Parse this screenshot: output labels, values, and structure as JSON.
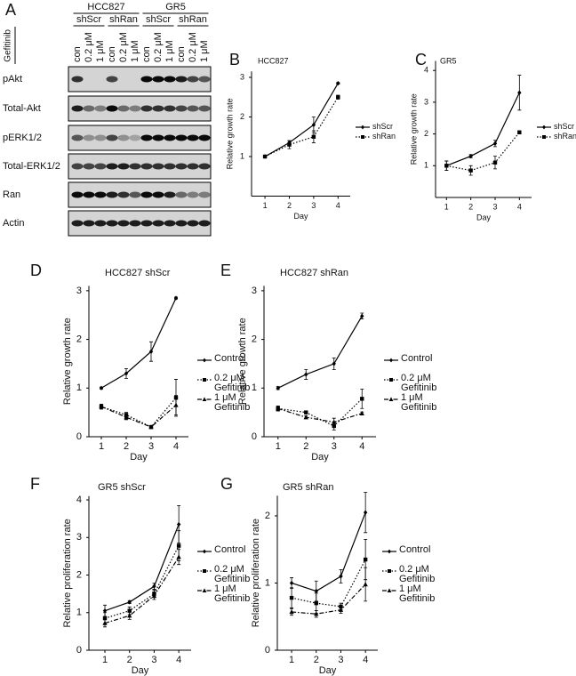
{
  "blot": {
    "panel": "A",
    "treatment_label": "Gefitinib",
    "groups": [
      {
        "label": "HCC827",
        "subgroups": [
          "shScr",
          "shRan"
        ]
      },
      {
        "label": "GR5",
        "subgroups": [
          "shScr",
          "shRan"
        ]
      }
    ],
    "lanes": [
      "con",
      "0.2 μM",
      "1 μM",
      "con",
      "0.2 μM",
      "1 μM",
      "con",
      "0.2 μM",
      "1 μM",
      "con",
      "0.2 μM",
      "1 μM"
    ],
    "rows": [
      {
        "name": "pAkt",
        "bands": [
          0.8,
          0,
          0,
          0.7,
          0,
          0,
          1,
          1,
          1,
          0.9,
          0.7,
          0.6
        ]
      },
      {
        "name": "Total-Akt",
        "bands": [
          0.9,
          0.5,
          0.4,
          1,
          0.5,
          0.4,
          0.8,
          0.8,
          0.8,
          0.7,
          0.6,
          0.6
        ]
      },
      {
        "name": "pERK1/2",
        "bands": [
          0.6,
          0.3,
          0.3,
          0.7,
          0.3,
          0.2,
          1,
          1,
          1,
          1,
          1,
          1
        ]
      },
      {
        "name": "Total-ERK1/2",
        "bands": [
          0.7,
          0.7,
          0.7,
          0.9,
          0.9,
          0.8,
          0.8,
          0.8,
          0.8,
          0.8,
          0.8,
          0.8
        ]
      },
      {
        "name": "Ran",
        "bands": [
          1,
          1,
          1,
          0.9,
          0.8,
          0.6,
          1,
          1,
          0.9,
          0.5,
          0.4,
          0.4
        ]
      },
      {
        "name": "Actin",
        "bands": [
          0.9,
          0.9,
          0.9,
          0.9,
          0.9,
          0.9,
          0.9,
          0.9,
          0.9,
          0.9,
          0.9,
          0.9
        ]
      }
    ]
  },
  "chart_data": [
    {
      "type": "line",
      "panel": "B",
      "title": "HCC827",
      "xlabel": "Day",
      "ylabel": "Relative growth rate",
      "x": [
        1,
        2,
        3,
        4
      ],
      "xlim": [
        0.45,
        4.5
      ],
      "xticks": [
        1,
        2,
        3,
        4
      ],
      "ylim": [
        0,
        3.15
      ],
      "yticks": [
        1,
        2,
        3
      ],
      "legend": "right",
      "series": [
        {
          "name": "shScr",
          "color": "#000000",
          "style": "solid",
          "marker": "diamond",
          "values": [
            1,
            1.35,
            1.8,
            2.85
          ],
          "errors": [
            0.02,
            0.05,
            0.2,
            0.02
          ]
        },
        {
          "name": "shRan",
          "color": "#000000",
          "style": "dotted",
          "marker": "square",
          "values": [
            1,
            1.3,
            1.5,
            2.5
          ],
          "errors": [
            0.02,
            0.1,
            0.15,
            0.05
          ]
        }
      ]
    },
    {
      "type": "line",
      "panel": "C",
      "title": "GR5",
      "xlabel": "Day",
      "ylabel": "Relative growth rate",
      "x": [
        1,
        2,
        3,
        4
      ],
      "xlim": [
        0.55,
        4.5
      ],
      "xticks": [
        1,
        2,
        3,
        4
      ],
      "ylim": [
        0,
        4.3
      ],
      "yticks": [
        1,
        2,
        3,
        4
      ],
      "legend": "right",
      "series": [
        {
          "name": "shScr",
          "color": "#000000",
          "style": "solid",
          "marker": "diamond",
          "values": [
            1,
            1.3,
            1.7,
            3.3
          ],
          "errors": [
            0.15,
            0.05,
            0.1,
            0.55
          ]
        },
        {
          "name": "shRan",
          "color": "#000000",
          "style": "dotted",
          "marker": "square",
          "values": [
            1,
            0.85,
            1.1,
            2.05
          ],
          "errors": [
            0.15,
            0.15,
            0.2,
            0.05
          ]
        }
      ]
    },
    {
      "type": "line",
      "panel": "D",
      "title": "HCC827 shScr",
      "xlabel": "Day",
      "ylabel": "Relative growth rate",
      "x": [
        1,
        2,
        3,
        4
      ],
      "xlim": [
        0.5,
        4.5
      ],
      "xticks": [
        1,
        2,
        3,
        4
      ],
      "ylim": [
        0,
        3.1
      ],
      "yticks": [
        0,
        1,
        2,
        3
      ],
      "legend": "right",
      "series": [
        {
          "name": "Control",
          "color": "#000000",
          "style": "solid",
          "marker": "diamond",
          "values": [
            1,
            1.3,
            1.75,
            2.85
          ],
          "errors": [
            0.02,
            0.1,
            0.2,
            0.02
          ]
        },
        {
          "name": "0.2 μM Gefitinib",
          "color": "#000000",
          "style": "dotted",
          "marker": "square",
          "values": [
            0.62,
            0.45,
            0.2,
            0.8
          ],
          "errors": [
            0.05,
            0.05,
            0.03,
            0.38
          ]
        },
        {
          "name": "1 μM Gefitinib",
          "color": "#000000",
          "style": "dashdot",
          "marker": "triangle",
          "values": [
            0.62,
            0.4,
            0.2,
            0.65
          ],
          "errors": [
            0.05,
            0.05,
            0.03,
            0.2
          ]
        }
      ]
    },
    {
      "type": "line",
      "panel": "E",
      "title": "HCC827 shRan",
      "xlabel": "Day",
      "ylabel": "Relative growth rate",
      "x": [
        1,
        2,
        3,
        4
      ],
      "xlim": [
        0.5,
        4.5
      ],
      "xticks": [
        1,
        2,
        3,
        4
      ],
      "ylim": [
        0,
        3.1
      ],
      "yticks": [
        0,
        1,
        2,
        3
      ],
      "legend": "right",
      "series": [
        {
          "name": "Control",
          "color": "#000000",
          "style": "solid",
          "marker": "diamond",
          "values": [
            1,
            1.28,
            1.5,
            2.48
          ],
          "errors": [
            0.03,
            0.1,
            0.12,
            0.06
          ]
        },
        {
          "name": "0.2 μM Gefitinib",
          "color": "#000000",
          "style": "dotted",
          "marker": "square",
          "values": [
            0.58,
            0.5,
            0.22,
            0.78
          ],
          "errors": [
            0.05,
            0.03,
            0.08,
            0.2
          ]
        },
        {
          "name": "1 μM Gefitinib",
          "color": "#000000",
          "style": "dashdot",
          "marker": "triangle",
          "values": [
            0.58,
            0.4,
            0.3,
            0.48
          ],
          "errors": [
            0.05,
            0.03,
            0.08,
            0.03
          ]
        }
      ]
    },
    {
      "type": "line",
      "panel": "F",
      "title": "GR5 shScr",
      "xlabel": "Day",
      "ylabel": "Relative proliferation rate",
      "x": [
        1,
        2,
        3,
        4
      ],
      "xlim": [
        0.35,
        4.5
      ],
      "xticks": [
        1,
        2,
        3,
        4
      ],
      "ylim": [
        0,
        4.1
      ],
      "yticks": [
        0,
        1,
        2,
        3,
        4
      ],
      "legend": "right",
      "series": [
        {
          "name": "Control",
          "color": "#000000",
          "style": "solid",
          "marker": "diamond",
          "values": [
            1.05,
            1.28,
            1.7,
            3.35
          ],
          "errors": [
            0.15,
            0.04,
            0.08,
            0.5
          ]
        },
        {
          "name": "0.2 μM Gefitinib",
          "color": "#000000",
          "style": "dotted",
          "marker": "square",
          "values": [
            0.85,
            1.05,
            1.5,
            2.78
          ],
          "errors": [
            0.15,
            0.1,
            0.1,
            0.4
          ]
        },
        {
          "name": "1 μM Gefitinib",
          "color": "#000000",
          "style": "dashdot",
          "marker": "triangle",
          "values": [
            0.72,
            0.92,
            1.45,
            2.48
          ],
          "errors": [
            0.1,
            0.1,
            0.1,
            0.2
          ]
        }
      ]
    },
    {
      "type": "line",
      "panel": "G",
      "title": "GR5 shRan",
      "xlabel": "Day",
      "ylabel": "Relative proliferation rate",
      "x": [
        1,
        2,
        3,
        4
      ],
      "xlim": [
        0.42,
        4.5
      ],
      "xticks": [
        1,
        2,
        3,
        4
      ],
      "ylim": [
        0,
        2.3
      ],
      "yticks": [
        0,
        1,
        2
      ],
      "legend": "right",
      "series": [
        {
          "name": "Control",
          "color": "#000000",
          "style": "solid",
          "marker": "diamond",
          "values": [
            1,
            0.88,
            1.1,
            2.05
          ],
          "errors": [
            0.08,
            0.15,
            0.1,
            0.3
          ]
        },
        {
          "name": "0.2 μM Gefitinib",
          "color": "#000000",
          "style": "dotted",
          "marker": "square",
          "values": [
            0.78,
            0.7,
            0.65,
            1.35
          ],
          "errors": [
            0.15,
            0.15,
            0.05,
            0.3
          ]
        },
        {
          "name": "1 μM Gefitinib",
          "color": "#000000",
          "style": "dashdot",
          "marker": "triangle",
          "values": [
            0.57,
            0.54,
            0.6,
            0.98
          ],
          "errors": [
            0.05,
            0.05,
            0.05,
            0.25
          ]
        }
      ]
    }
  ]
}
